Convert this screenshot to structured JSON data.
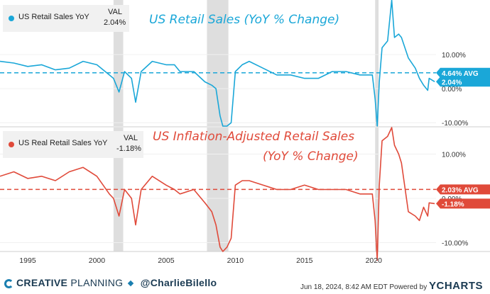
{
  "chart_data": [
    {
      "type": "line",
      "title": "US Retail Sales (YoY % Change)",
      "series": [
        {
          "name": "US Retail Sales YoY",
          "color": "#1aa7d8",
          "x": [
            1993,
            1994,
            1995,
            1996,
            1997,
            1998,
            1999,
            2000,
            2000.9,
            2001.2,
            2001.6,
            2001.8,
            2002,
            2002.5,
            2002.8,
            2003.2,
            2004,
            2005,
            2005.6,
            2006,
            2007,
            2007.8,
            2008.3,
            2008.6,
            2008.9,
            2009.1,
            2009.4,
            2009.7,
            2010,
            2010.5,
            2011,
            2012,
            2013,
            2014,
            2015,
            2016,
            2017,
            2018,
            2019,
            2019.9,
            2020.1,
            2020.25,
            2020.4,
            2020.6,
            2021,
            2021.3,
            2021.5,
            2021.8,
            2022,
            2022.5,
            2023,
            2023.3,
            2023.6,
            2023.9,
            2024,
            2024.4
          ],
          "values": [
            8,
            7.5,
            6.5,
            7,
            5.5,
            6,
            8,
            7,
            4,
            3,
            -1,
            2,
            5,
            3,
            -4,
            5,
            8,
            7,
            7,
            5,
            5,
            2,
            1,
            0,
            -8,
            -11,
            -11,
            -10,
            5,
            7,
            8,
            6,
            4,
            4,
            3,
            3,
            5,
            5,
            4,
            4,
            -3,
            -11,
            2,
            12,
            14,
            26,
            15,
            16,
            15,
            9,
            6,
            3,
            1,
            -0.5,
            3,
            2.04
          ],
          "current_value": 2.04
        },
        {
          "name": "Average",
          "values": [
            4.64
          ],
          "style": "dashed"
        }
      ],
      "ylim": [
        -11,
        26
      ],
      "y_ticks": [
        10,
        0,
        -10
      ],
      "y_tick_labels": [
        "10.00%",
        "0.00%",
        "-10.00%"
      ],
      "avg_label": "4.64% AVG",
      "value_label": "2.04%",
      "legend": {
        "name": "US Retail Sales YoY",
        "val_header": "VAL",
        "val": "2.04%"
      }
    },
    {
      "type": "line",
      "title": "US Inflation-Adjusted Retail Sales",
      "subtitle": "(YoY % Change)",
      "series": [
        {
          "name": "US Real Retail Sales YoY",
          "color": "#e04a3a",
          "x": [
            1993,
            1994,
            1995,
            1996,
            1997,
            1998,
            1999,
            2000,
            2000.9,
            2001.2,
            2001.6,
            2001.8,
            2002,
            2002.5,
            2002.8,
            2003.2,
            2004,
            2005,
            2005.6,
            2006,
            2007,
            2007.8,
            2008.3,
            2008.6,
            2008.9,
            2009.1,
            2009.4,
            2009.7,
            2010,
            2010.5,
            2011,
            2012,
            2013,
            2014,
            2015,
            2016,
            2017,
            2018,
            2019,
            2019.9,
            2020.1,
            2020.25,
            2020.4,
            2020.6,
            2021,
            2021.3,
            2021.5,
            2021.8,
            2022,
            2022.5,
            2023,
            2023.3,
            2023.6,
            2023.9,
            2024,
            2024.4
          ],
          "values": [
            5,
            6,
            4.5,
            5,
            4,
            6,
            7,
            5,
            1,
            0,
            -4,
            -1,
            2,
            0,
            -6,
            2,
            5,
            3,
            2,
            1,
            2,
            -1,
            -3,
            -6,
            -11,
            -12,
            -11,
            -9,
            3,
            4,
            4,
            3,
            2,
            2,
            3,
            2,
            2,
            2,
            1,
            1,
            -5,
            -14,
            3,
            13,
            14,
            16,
            12,
            10,
            8,
            -3,
            -4,
            -5,
            -2,
            -4,
            -1,
            -1.18
          ],
          "current_value": -1.18
        },
        {
          "name": "Average",
          "values": [
            2.03
          ],
          "style": "dashed"
        }
      ],
      "ylim": [
        -12,
        16
      ],
      "y_ticks": [
        10,
        0,
        -10
      ],
      "y_tick_labels": [
        "10.00%",
        "0.00%",
        "-10.00%"
      ],
      "avg_label": "2.03% AVG",
      "value_label": "-1.18%",
      "legend": {
        "name": "US Real Retail Sales YoY",
        "val_header": "VAL",
        "val": "-1.18%"
      }
    }
  ],
  "x_axis": {
    "range": [
      1993.0,
      2024.5
    ],
    "ticks": [
      1995,
      2000,
      2005,
      2010,
      2015,
      2020
    ],
    "tick_labels": [
      "1995",
      "2000",
      "2005",
      "2010",
      "2015",
      "2020"
    ]
  },
  "recessions": [
    [
      2001.2,
      2001.9
    ],
    [
      2007.95,
      2009.5
    ],
    [
      2020.1,
      2020.35
    ]
  ],
  "footer": {
    "logo_word1": "CREATIVE",
    "logo_word2": "PLANNING",
    "handle": "@CharlieBilello",
    "credit": "Jun 18, 2024, 8:42 AM EDT Powered by",
    "brand": "YCHARTS"
  }
}
